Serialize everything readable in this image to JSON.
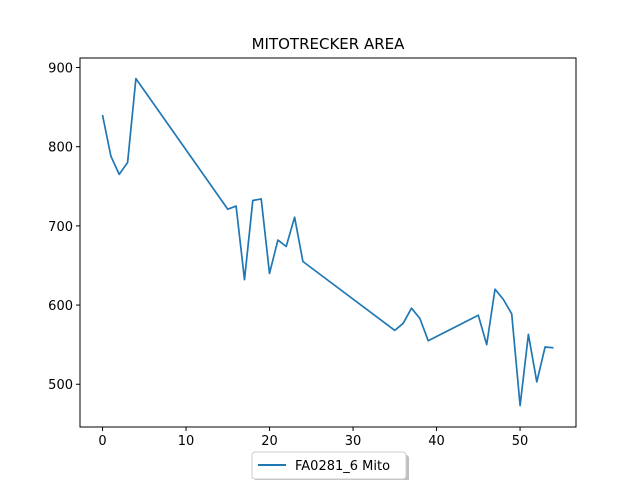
{
  "chart_data": {
    "type": "line",
    "title": "MITOTRECKER AREA",
    "xlabel": "",
    "ylabel": "",
    "xlim": [
      -2.7,
      56.7
    ],
    "ylim": [
      446,
      912
    ],
    "xticks": [
      0,
      10,
      20,
      30,
      40,
      50
    ],
    "yticks": [
      500,
      600,
      700,
      800,
      900
    ],
    "grid": false,
    "legend": {
      "placement": "bottom-center-outside"
    },
    "series": [
      {
        "name": "FA0281_6 Mito",
        "color": "#1f77b4",
        "x": [
          0,
          1,
          2,
          3,
          4,
          15,
          16,
          17,
          18,
          19,
          20,
          21,
          22,
          23,
          24,
          35,
          36,
          37,
          38,
          39,
          45,
          46,
          47,
          48,
          49,
          50,
          51,
          52,
          53,
          54
        ],
        "y": [
          840,
          788,
          765,
          780,
          886,
          721,
          725,
          632,
          732,
          734,
          640,
          682,
          674,
          711,
          655,
          568,
          577,
          596,
          583,
          555,
          587,
          550,
          620,
          607,
          589,
          473,
          563,
          503,
          547,
          546
        ]
      }
    ]
  }
}
